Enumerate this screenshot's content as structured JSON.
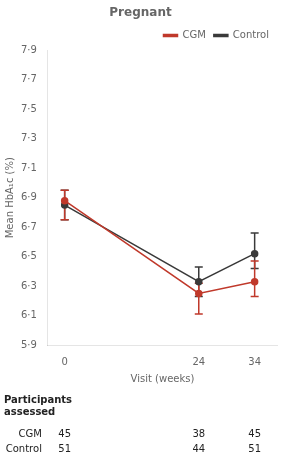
{
  "chart_data": {
    "type": "line",
    "title": "Pregnant",
    "x_label": "Visit (weeks)",
    "y_label": "Mean HbA₁c (%)",
    "x": [
      0,
      24,
      34
    ],
    "xlim": [
      -3,
      38
    ],
    "xticks": [
      0,
      24,
      34
    ],
    "ylim": [
      5.9,
      7.9
    ],
    "yticks": [
      {
        "value": 5.9,
        "label": "5·9"
      },
      {
        "value": 6.1,
        "label": "6·1"
      },
      {
        "value": 6.3,
        "label": "6·3"
      },
      {
        "value": 6.5,
        "label": "6·5"
      },
      {
        "value": 6.7,
        "label": "6·7"
      },
      {
        "value": 6.9,
        "label": "6·9"
      },
      {
        "value": 7.1,
        "label": "7·1"
      },
      {
        "value": 7.3,
        "label": "7·3"
      },
      {
        "value": 7.5,
        "label": "7·5"
      },
      {
        "value": 7.7,
        "label": "7·7"
      },
      {
        "value": 7.9,
        "label": "7·9"
      }
    ],
    "grid": false,
    "legend": "upper right",
    "marker": "circle",
    "series": [
      {
        "name": "Control",
        "color": "#3a3a3a",
        "values": [
          6.85,
          6.33,
          6.52
        ],
        "error_lo": [
          0.1,
          0.1,
          0.1
        ],
        "error_hi": [
          0.1,
          0.1,
          0.14
        ]
      },
      {
        "name": "CGM",
        "color": "#c0392b",
        "values": [
          6.88,
          6.25,
          6.33
        ],
        "error_lo": [
          0.13,
          0.14,
          0.1
        ],
        "error_hi": [
          0.07,
          0.07,
          0.14
        ]
      }
    ],
    "participants": {
      "title": "Participants\nassessed",
      "x": [
        0,
        24,
        34
      ],
      "rows": [
        {
          "name": "CGM",
          "values": [
            45,
            38,
            45
          ]
        },
        {
          "name": "Control",
          "values": [
            51,
            44,
            51
          ]
        }
      ]
    }
  }
}
